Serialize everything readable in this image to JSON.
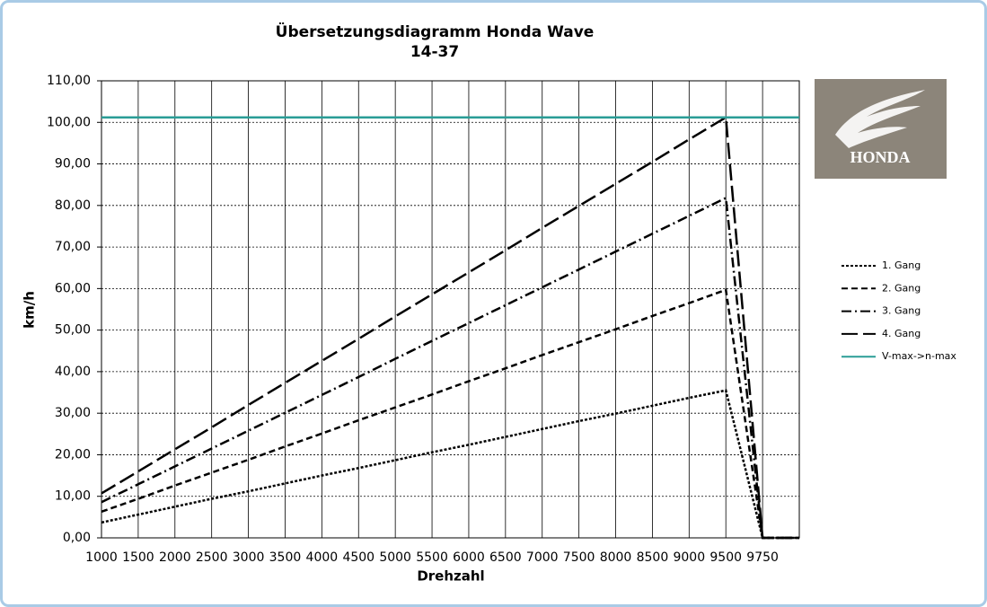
{
  "chart_data": {
    "type": "line",
    "title": "Übersetzungsdiagramm Honda Wave",
    "subtitle": "14-37",
    "x_label": "Drehzahl",
    "y_label": "km/h",
    "logo": "HONDA",
    "categories": [
      "1000",
      "1500",
      "2000",
      "2500",
      "3000",
      "3500",
      "4000",
      "4500",
      "5000",
      "5500",
      "6000",
      "6500",
      "7000",
      "7500",
      "8000",
      "8500",
      "9000",
      "9500",
      "9750",
      null
    ],
    "series": [
      {
        "name": "1. Gang",
        "color": "#000000",
        "dash": "3,2",
        "values": [
          3.7,
          5.6,
          7.5,
          9.4,
          11.2,
          13.1,
          15.0,
          16.8,
          18.7,
          20.6,
          22.4,
          24.3,
          26.2,
          28.1,
          29.9,
          31.8,
          33.7,
          35.5,
          0,
          0
        ]
      },
      {
        "name": "2. Gang",
        "color": "#000000",
        "dash": "7,4",
        "values": [
          6.3,
          9.4,
          12.6,
          15.7,
          18.8,
          22.0,
          25.1,
          28.3,
          31.4,
          34.5,
          37.7,
          40.8,
          44.0,
          47.1,
          50.2,
          53.4,
          56.5,
          59.7,
          0,
          0
        ]
      },
      {
        "name": "3. Gang",
        "color": "#000000",
        "dash": "11,4,2,4",
        "values": [
          8.6,
          12.9,
          17.2,
          21.5,
          25.8,
          30.1,
          34.4,
          38.7,
          43.1,
          47.4,
          51.7,
          56.0,
          60.3,
          64.6,
          68.9,
          73.2,
          77.5,
          81.8,
          0,
          0
        ]
      },
      {
        "name": "4. Gang",
        "color": "#000000",
        "dash": "18,6",
        "values": [
          10.7,
          16.0,
          21.3,
          26.6,
          32.0,
          37.3,
          42.6,
          47.9,
          53.3,
          58.6,
          63.9,
          69.2,
          74.6,
          79.9,
          85.2,
          90.5,
          95.9,
          101.2,
          0,
          0
        ]
      },
      {
        "name": "V-max->n-max",
        "color": "#2a9d96",
        "dash": "none",
        "values": [
          101.2,
          101.2,
          101.2,
          101.2,
          101.2,
          101.2,
          101.2,
          101.2,
          101.2,
          101.2,
          101.2,
          101.2,
          101.2,
          101.2,
          101.2,
          101.2,
          101.2,
          101.2,
          101.2,
          101.2
        ]
      }
    ],
    "ylim": [
      0,
      110
    ],
    "yticks": [
      {
        "value": 0,
        "label": "0,00"
      },
      {
        "value": 10,
        "label": "10,00"
      },
      {
        "value": 20,
        "label": "20,00"
      },
      {
        "value": 30,
        "label": "30,00"
      },
      {
        "value": 40,
        "label": "40,00"
      },
      {
        "value": 50,
        "label": "50,00"
      },
      {
        "value": 60,
        "label": "60,00"
      },
      {
        "value": 70,
        "label": "70,00"
      },
      {
        "value": 80,
        "label": "80,00"
      },
      {
        "value": 90,
        "label": "90,00"
      },
      {
        "value": 100,
        "label": "100,00"
      },
      {
        "value": 110,
        "label": "110,00"
      }
    ],
    "grid": true,
    "legend": "right"
  }
}
